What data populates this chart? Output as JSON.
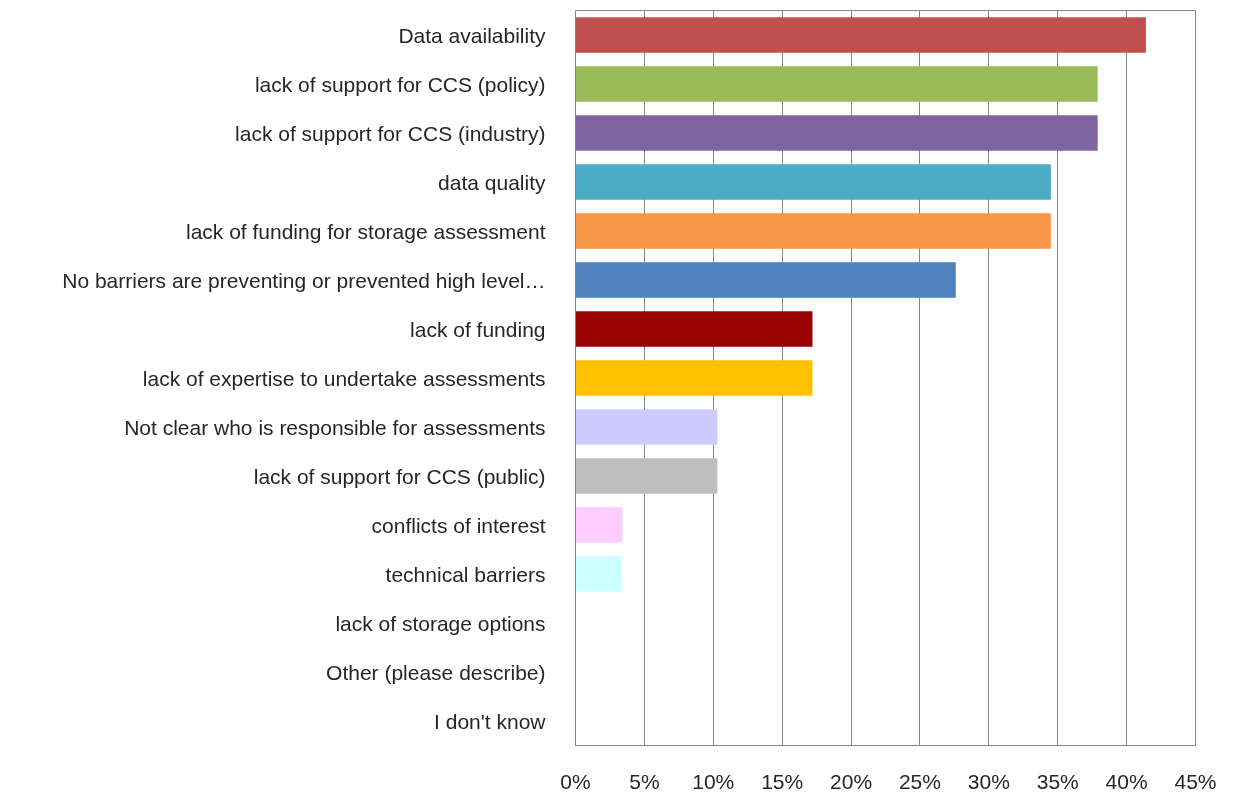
{
  "chart_data": {
    "type": "bar",
    "orientation": "horizontal",
    "categories": [
      "Data availability",
      "lack of support for CCS (policy)",
      "lack of support for CCS (industry)",
      "data quality",
      "lack of funding for storage assessment",
      "No barriers are preventing or prevented high level…",
      "lack of funding",
      "lack of expertise to undertake assessments",
      "Not clear who is responsible for assessments",
      "lack of support for CCS (public)",
      "conflicts of interest",
      "technical barriers",
      "lack of storage options",
      "Other (please describe)",
      "I don't know"
    ],
    "values": [
      41.4,
      37.9,
      37.9,
      34.5,
      34.5,
      27.6,
      17.2,
      17.2,
      10.3,
      10.3,
      3.4,
      3.4,
      0,
      0,
      0
    ],
    "colors": [
      "#c0504d",
      "#9bbb59",
      "#8064a2",
      "#4bacc6",
      "#f79646",
      "#4f81bd",
      "#990000",
      "#ffc000",
      "#ccccff",
      "#bfbfbf",
      "#ffccff",
      "#ccffff",
      "#ffffff",
      "#ffffff",
      "#ffffff"
    ],
    "xlim": [
      0,
      45
    ],
    "xticks": [
      {
        "value": 0,
        "label": "0%"
      },
      {
        "value": 5,
        "label": "5%"
      },
      {
        "value": 10,
        "label": "10%"
      },
      {
        "value": 15,
        "label": "15%"
      },
      {
        "value": 20,
        "label": "20%"
      },
      {
        "value": 25,
        "label": "25%"
      },
      {
        "value": 30,
        "label": "30%"
      },
      {
        "value": 35,
        "label": "35%"
      },
      {
        "value": 40,
        "label": "40%"
      },
      {
        "value": 45,
        "label": "45%"
      }
    ],
    "grid": "x"
  }
}
